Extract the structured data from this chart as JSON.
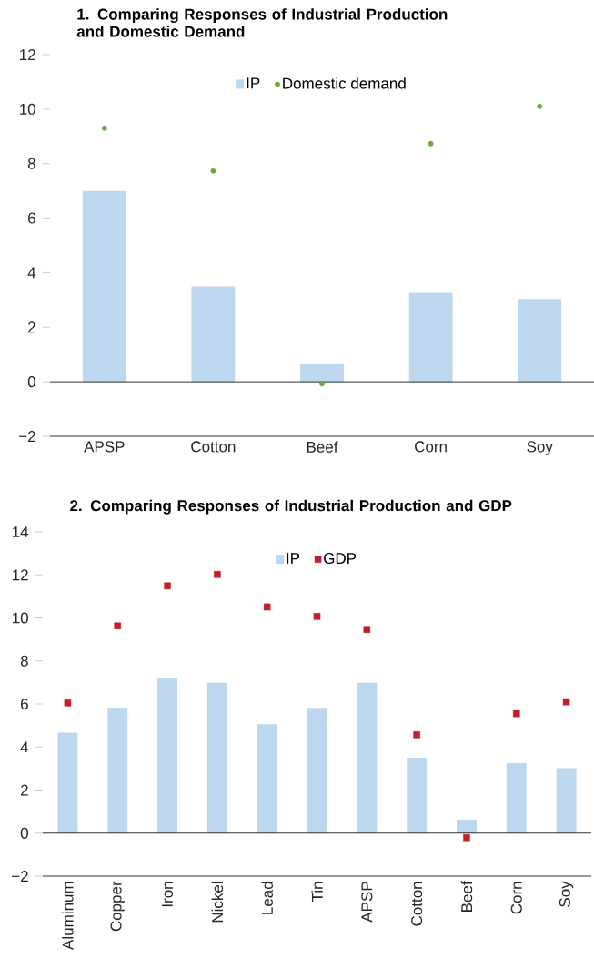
{
  "chart_data": [
    {
      "type": "bar",
      "title": "1. Comparing Responses of Industrial Production and Domestic Demand",
      "categories": [
        "APSP",
        "Cotton",
        "Beef",
        "Corn",
        "Soy"
      ],
      "series": [
        {
          "name": "IP",
          "color": "#bdd7ee",
          "values": [
            7.0,
            3.5,
            0.64,
            3.26,
            3.04
          ]
        },
        {
          "name": "Domestic demand",
          "type": "scatter",
          "color": "#6aaa3a",
          "values": [
            9.3,
            7.73,
            -0.07,
            8.73,
            10.1
          ]
        }
      ],
      "ylim": [
        -2,
        12
      ],
      "yticks": [
        {
          "value": -2,
          "label": "−2"
        },
        0,
        2,
        4,
        6,
        8,
        10,
        12
      ],
      "ref_lines": [
        {
          "axis": "y",
          "value": 0
        }
      ],
      "marker": "circle",
      "legend": "top",
      "grid": false
    },
    {
      "type": "bar",
      "title": "2. Comparing Responses of Industrial Production and GDP",
      "categories": [
        "Aluminum",
        "Copper",
        "Iron",
        "Nickel",
        "Lead",
        "Tin",
        "APSP",
        "Cotton",
        "Beef",
        "Corn",
        "Soy"
      ],
      "series": [
        {
          "name": "IP",
          "color": "#bdd7ee",
          "values": [
            4.67,
            5.83,
            7.2,
            6.98,
            5.06,
            5.82,
            6.98,
            3.5,
            0.63,
            3.25,
            3.02
          ]
        },
        {
          "name": "GDP",
          "type": "scatter",
          "color": "#c0202a",
          "values": [
            6.05,
            9.63,
            11.49,
            12.02,
            10.51,
            10.07,
            9.46,
            4.57,
            -0.21,
            5.55,
            6.1
          ]
        }
      ],
      "ylim": [
        -2,
        14
      ],
      "yticks": [
        {
          "value": -2,
          "label": "−2"
        },
        0,
        2,
        4,
        6,
        8,
        10,
        12,
        14
      ],
      "ref_lines": [
        {
          "axis": "y",
          "value": 0
        }
      ],
      "marker": "square",
      "legend": "top",
      "grid": false
    }
  ]
}
